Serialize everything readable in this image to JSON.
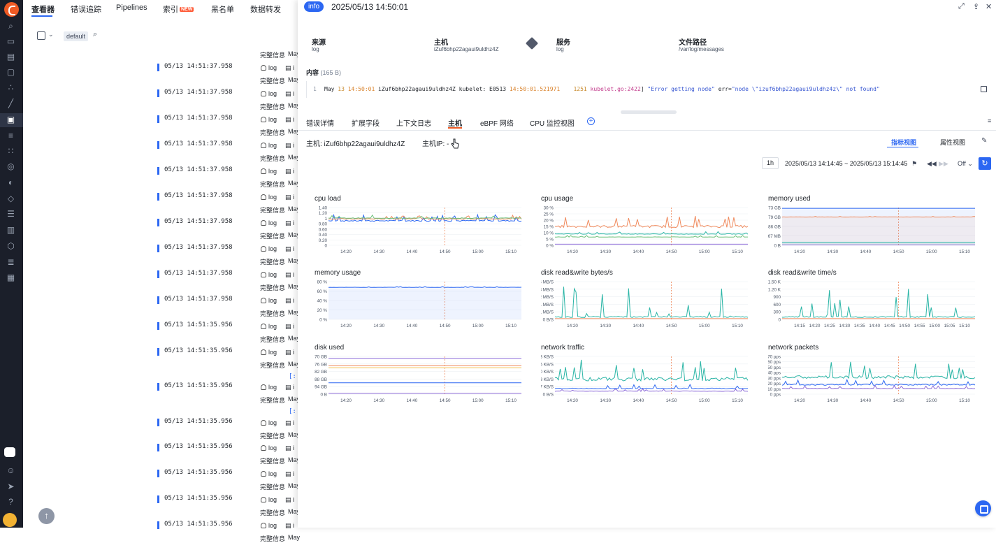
{
  "nav": {
    "tabs": [
      "查看器",
      "错误追踪",
      "Pipelines",
      "索引",
      "黑名单",
      "数据转发"
    ],
    "new_badge": "NEW"
  },
  "filter": {
    "space": "default"
  },
  "log_rows": [
    {
      "time": "05/13 14:51:37.958"
    },
    {
      "time": "05/13 14:51:37.958"
    },
    {
      "time": "05/13 14:51:37.958"
    },
    {
      "time": "05/13 14:51:37.958"
    },
    {
      "time": "05/13 14:51:37.958"
    },
    {
      "time": "05/13 14:51:37.958"
    },
    {
      "time": "05/13 14:51:37.958"
    },
    {
      "time": "05/13 14:51:37.958"
    },
    {
      "time": "05/13 14:51:37.958"
    },
    {
      "time": "05/13 14:51:37.958"
    },
    {
      "time": "05/13 14:51:35.956"
    },
    {
      "time": "05/13 14:51:35.956"
    },
    {
      "time": "05/13 14:51:35.956"
    },
    {
      "time": "05/13 14:51:35.956"
    },
    {
      "time": "05/13 14:51:35.956"
    },
    {
      "time": "05/13 14:51:35.956"
    },
    {
      "time": "05/13 14:51:35.956"
    },
    {
      "time": "05/13 14:51:35.956"
    }
  ],
  "log_source": "log",
  "log_detail_label": "完整信息",
  "log_may": "May",
  "log_list_marker": "i",
  "log_bracket": "[:",
  "drawer": {
    "level": "info",
    "time": "2025/05/13 14:50:01",
    "meta": {
      "source_label": "来源",
      "source_value": "log",
      "host_label": "主机",
      "host_value": "iZuf6bhp22agaui9uldhz4Z",
      "service_label": "服务",
      "service_value": "log",
      "path_label": "文件路径",
      "path_value": "/var/log/messages"
    },
    "content_label": "内容",
    "content_size": "(165 B)",
    "content_line_no": "1",
    "content_parts": {
      "p1": "May ",
      "p2": "13",
      "p3": " ",
      "p4": "14:50:01",
      "p5": " iZuf6bhp22agaui9uldhz4Z kubelet: E0513 ",
      "p6": "14:50:01.521971",
      "p7": "    1251 ",
      "p8": "kubelet.go:2422",
      "p9": "] ",
      "p10": "\"Error getting node\"",
      "p11": " err=",
      "p12": "\"node \\\"izuf6bhp22agaui9uldhz4z\\\" not found\""
    },
    "tabs": [
      "错误详情",
      "扩展字段",
      "上下文日志",
      "主机",
      "eBPF 网络",
      "CPU 监控视图"
    ],
    "host_line": "主机: iZuf6bhp22agaui9uldhz4Z",
    "host_ip_line": "主机IP: -",
    "view_metrics": "指标视图",
    "view_attrs": "属性视图",
    "range": "1h",
    "range_text": "2025/05/13 14:14:45 ~ 2025/05/13 15:14:45",
    "refresh_mode": "Off"
  },
  "colors": {
    "accent": "#2c67f2",
    "orange": "#f08a5d",
    "teal": "#2ab5a6",
    "purple": "#8c6ad8",
    "yellow": "#f2c14e",
    "green": "#6cc07a"
  },
  "charts": [
    {
      "title": "cpu load",
      "yticks": [
        "1.40",
        "1.20",
        "1",
        "0.80",
        "0.60",
        "0.40",
        "0.20",
        "0"
      ],
      "xticks": [
        "14:20",
        "14:30",
        "14:40",
        "14:50",
        "15:00",
        "15:10"
      ]
    },
    {
      "title": "cpu usage",
      "yticks": [
        "30 %",
        "25 %",
        "20 %",
        "15 %",
        "10 %",
        "5 %",
        "0 %"
      ],
      "xticks": [
        "14:20",
        "14:30",
        "14:40",
        "14:50",
        "15:00",
        "15:10"
      ]
    },
    {
      "title": "memory used",
      "yticks": [
        "3.73 GB",
        "2.79 GB",
        "1.86 GB",
        "953.67 MB",
        "0 B"
      ],
      "xticks": [
        "14:20",
        "14:30",
        "14:40",
        "14:50",
        "15:00",
        "15:10"
      ]
    },
    {
      "title": "memory usage",
      "yticks": [
        "80 %",
        "60 %",
        "40 %",
        "20 %",
        "0 %"
      ],
      "xticks": [
        "14:20",
        "14:30",
        "14:40",
        "14:50",
        "15:00",
        "15:10"
      ]
    },
    {
      "title": "disk read&write bytes/s",
      "yticks": [
        "9.54 MB/S",
        "7.63 MB/S",
        "5.72 MB/S",
        "3.81 MB/S",
        "1.91 MB/S",
        "0 B/S"
      ],
      "xticks": [
        "14:20",
        "14:30",
        "14:40",
        "14:50",
        "15:00",
        "15:10"
      ]
    },
    {
      "title": "disk read&write time/s",
      "yticks": [
        "1.50 K",
        "1.20 K",
        "900",
        "600",
        "300",
        "0"
      ],
      "xticks": [
        "14:15",
        "14:20",
        "14:25",
        "14:30",
        "14:35",
        "14:40",
        "14:45",
        "14:50",
        "14:55",
        "15:00",
        "15:05",
        "15:10"
      ]
    },
    {
      "title": "disk used",
      "yticks": [
        "139.70 GB",
        "111.76 GB",
        "83.82 GB",
        "55.88 GB",
        "27.94 GB",
        "0 B"
      ],
      "xticks": [
        "14:20",
        "14:30",
        "14:40",
        "14:50",
        "15:00",
        "15:10"
      ]
    },
    {
      "title": "network traffic",
      "yticks": [
        "48.83 KB/S",
        "39.06 KB/S",
        "29.30 KB/S",
        "19.53 KB/S",
        "9.77 KB/S",
        "0 B/S"
      ],
      "xticks": [
        "14:20",
        "14:30",
        "14:40",
        "14:50",
        "15:00",
        "15:10"
      ]
    },
    {
      "title": "network packets",
      "yticks": [
        "70 pps",
        "60 pps",
        "50 pps",
        "40 pps",
        "30 pps",
        "20 pps",
        "10 pps",
        "0 pps"
      ],
      "xticks": [
        "14:20",
        "14:30",
        "14:40",
        "14:50",
        "15:00",
        "15:10"
      ]
    }
  ]
}
